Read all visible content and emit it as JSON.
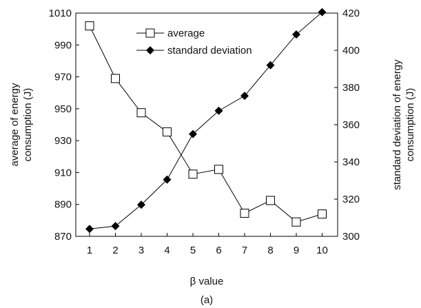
{
  "chart_data": {
    "type": "line",
    "x": [
      1,
      2,
      3,
      4,
      5,
      6,
      7,
      8,
      9,
      10
    ],
    "xlabel": "β value",
    "ylabel_left": [
      "average of energy",
      "consumption (J)"
    ],
    "ylabel_right": [
      "standard deviation of energy",
      "consumption (J)"
    ],
    "ylim_left": [
      870,
      1010
    ],
    "yticks_left": [
      870,
      890,
      910,
      930,
      950,
      970,
      990,
      1010
    ],
    "ylim_right": [
      300,
      420
    ],
    "yticks_right": [
      300,
      320,
      340,
      360,
      380,
      400,
      420
    ],
    "grid": false,
    "legend_position": "top-center",
    "caption": "(a)",
    "series": [
      {
        "name": "average",
        "axis": "left",
        "marker": "open-square",
        "color": "#000000",
        "values": [
          1002,
          969,
          947.5,
          935.5,
          909,
          912,
          884.5,
          892.5,
          879,
          884
        ]
      },
      {
        "name": "standard deviation",
        "axis": "right",
        "marker": "filled-diamond",
        "color": "#000000",
        "values": [
          304,
          305.5,
          317,
          330.5,
          355,
          367.5,
          375.5,
          392,
          408.5,
          420.5
        ]
      }
    ]
  }
}
